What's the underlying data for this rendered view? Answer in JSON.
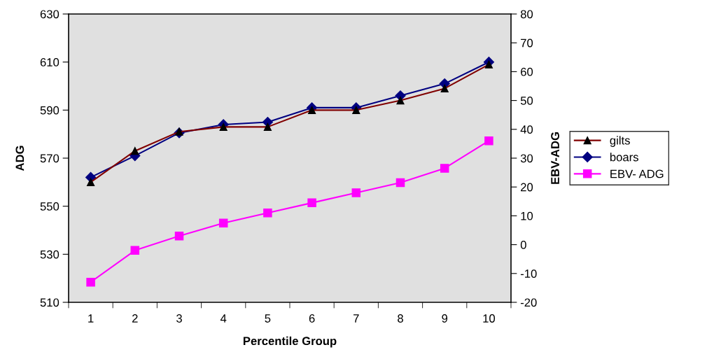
{
  "chart_data": {
    "type": "line",
    "xlabel": "Percentile Group",
    "ylabel": "ADG",
    "y2label": "EBV-ADG",
    "categories": [
      "1",
      "2",
      "3",
      "4",
      "5",
      "6",
      "7",
      "8",
      "9",
      "10"
    ],
    "series": [
      {
        "name": "gilts",
        "color": "#800000",
        "marker": "triangle",
        "values": [
          560,
          573,
          581,
          583,
          583,
          590,
          590,
          594,
          599,
          609
        ]
      },
      {
        "name": "boars",
        "color": "#000080",
        "marker": "diamond",
        "values": [
          562,
          571,
          580.5,
          584,
          585,
          591,
          591,
          596,
          601,
          610
        ]
      },
      {
        "name": "EBV- ADG",
        "color": "#ff00ff",
        "marker": "square",
        "axis": "y2",
        "values": [
          -13,
          -2,
          3,
          7.5,
          11,
          14.5,
          18,
          21.5,
          26.5,
          36
        ]
      }
    ],
    "ylim": [
      510,
      630
    ],
    "yticks": [
      510,
      530,
      550,
      570,
      590,
      610,
      630
    ],
    "y2lim": [
      -20,
      80
    ],
    "y2ticks": [
      -20,
      -10,
      0,
      10,
      20,
      30,
      40,
      50,
      60,
      70,
      80
    ],
    "grid": false,
    "legend": "right",
    "line_style": "solid"
  }
}
